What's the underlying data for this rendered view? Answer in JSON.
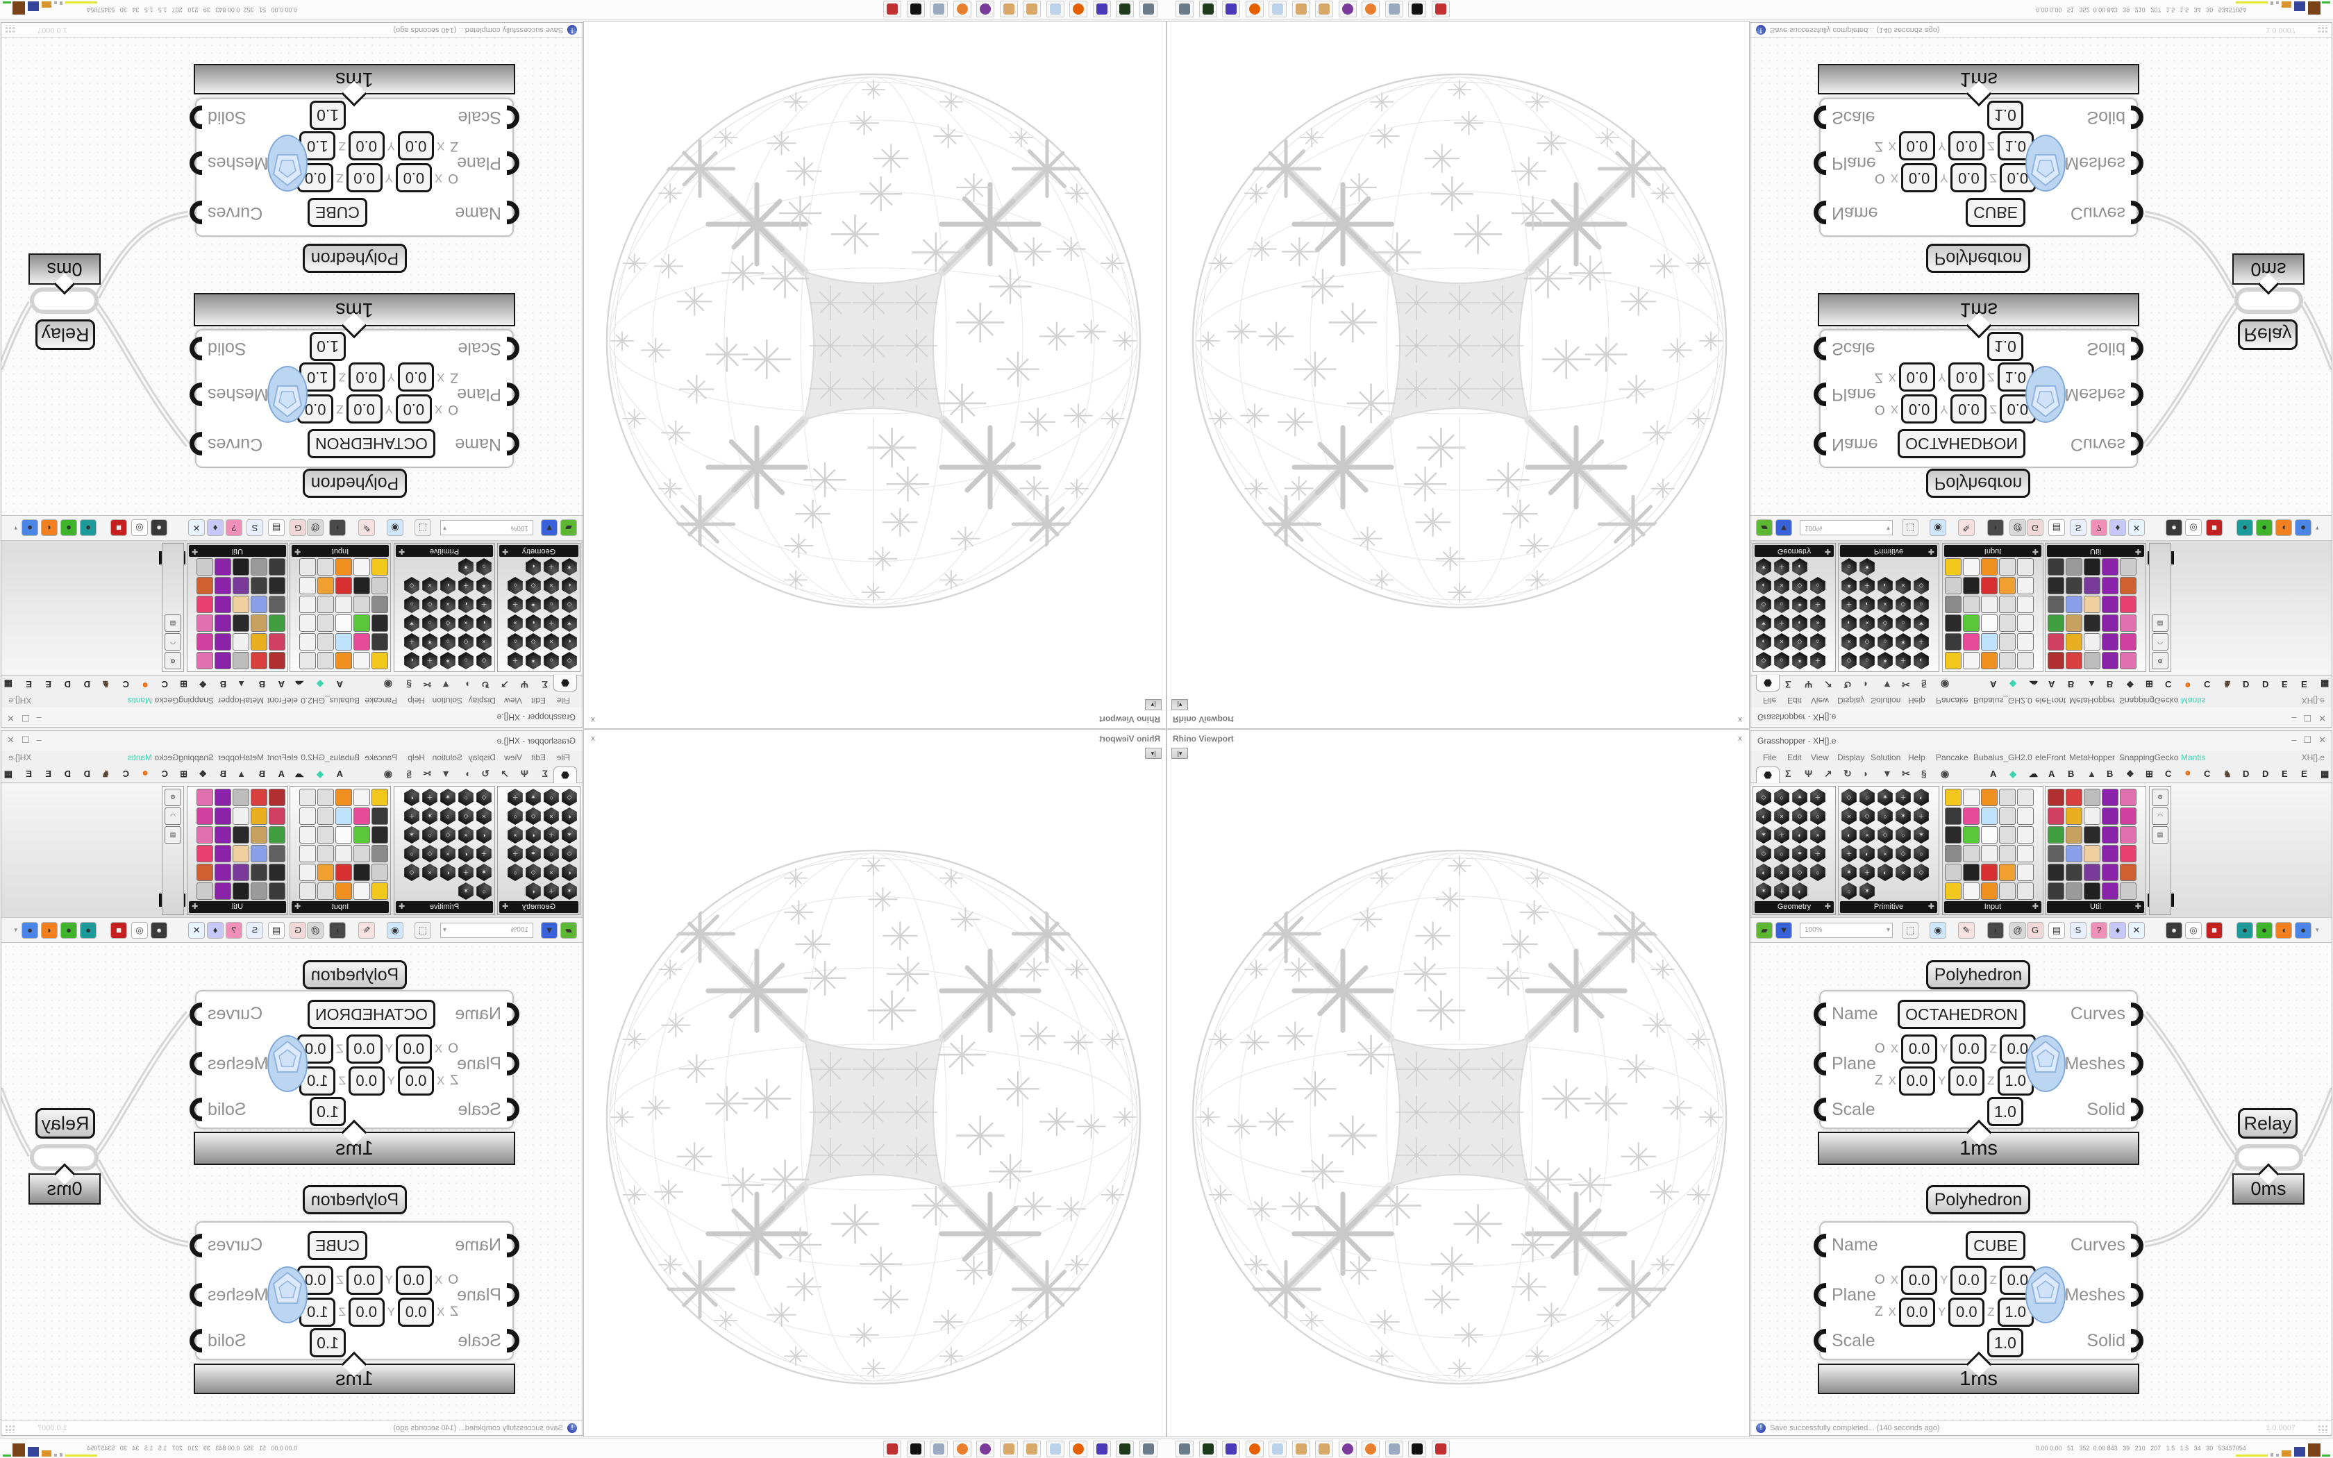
{
  "grasshopper": {
    "title": "Grasshopper - XH[].e",
    "window_buttons": {
      "minimize": "–",
      "maximize": "☐",
      "close": "✕"
    },
    "menu_items": [
      "File",
      "Edit",
      "View",
      "Display",
      "Solution",
      "Help",
      "Pancake",
      "Bubalus_GH2.0",
      "eleFront",
      "MetaHopper",
      "SnappingGecko",
      "Mantis"
    ],
    "menu_item_right": "XH[].e",
    "mantis_color": "#3fd4b4",
    "tab_glyphs": [
      "Σ",
      "Ψ",
      "↗",
      "↻",
      "◗",
      "▼",
      "✂",
      "§",
      "◉"
    ],
    "tab_items": [
      "A",
      "◆",
      "☁",
      "A",
      "B",
      "▲",
      "B",
      "❖",
      "⊞",
      "C",
      "●",
      "C",
      "♞",
      "D",
      "D",
      "E",
      "E",
      "▦"
    ],
    "palette_groups": [
      {
        "label": "Geometry"
      },
      {
        "label": "Primitive"
      },
      {
        "label": "Input"
      },
      {
        "label": "Util"
      }
    ],
    "palette_tooltip": "Sho...",
    "toolbar_zoom": "100%",
    "components": [
      {
        "header": "Polyhedron",
        "name_value": "OCTAHEDRON",
        "inputs": [
          "Name",
          "Plane",
          "Scale"
        ],
        "outputs": [
          "Curves",
          "Meshes",
          "Solid"
        ],
        "plane_row1_prefix": "O",
        "plane_row2_prefix": "Z",
        "axis_x": "X",
        "axis_y": "Y",
        "axis_z": "Z",
        "plane_row1": [
          "0.0",
          "0.0",
          "0.0"
        ],
        "plane_row2": [
          "0.0",
          "0.0",
          "1.0"
        ],
        "scale_value": "1.0",
        "profiler": "1ms"
      },
      {
        "header": "Polyhedron",
        "name_value": "CUBE",
        "inputs": [
          "Name",
          "Plane",
          "Scale"
        ],
        "outputs": [
          "Curves",
          "Meshes",
          "Solid"
        ],
        "plane_row1_prefix": "O",
        "plane_row2_prefix": "Z",
        "axis_x": "X",
        "axis_y": "Y",
        "axis_z": "Z",
        "plane_row1": [
          "0.0",
          "0.0",
          "0.0"
        ],
        "plane_row2": [
          "0.0",
          "0.0",
          "1.0"
        ],
        "scale_value": "1.0",
        "profiler": "1ms"
      }
    ],
    "relay_label": "Relay",
    "relay_profiler": "0ms",
    "status_message": "Save successfully completed... (140 seconds ago)",
    "status_version": "1.0.0007"
  },
  "viewport": {
    "title": "Rhino Viewport",
    "close_label": "x"
  },
  "taskbar": {
    "app_icons": [
      "system-settings",
      "terminal",
      "archive-64",
      "firefox",
      "calculator",
      "image-editor",
      "paint-tool",
      "media-player",
      "blender",
      "document-viewer",
      "inkscape",
      "package-manager"
    ],
    "stats_text": "0.00 0.00   51   352  0.00 843   39   210   207   1.5   1.5   34   30   53457054"
  }
}
